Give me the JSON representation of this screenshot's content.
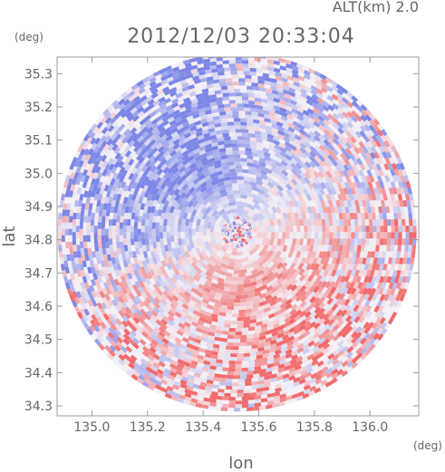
{
  "chart_data": {
    "type": "heatmap",
    "title": "2012/12/03 20:33:04",
    "altitude_label": "ALT(km)  2.0",
    "xlabel": "lon",
    "ylabel": "lat",
    "x_unit": "(deg)",
    "y_unit": "(deg)",
    "xlim": [
      134.875,
      136.175
    ],
    "ylim": [
      34.27,
      35.35
    ],
    "x_ticks": [
      "135.0",
      "135.2",
      "135.4",
      "135.6",
      "135.8",
      "136.0"
    ],
    "y_ticks": [
      "34.3",
      "34.4",
      "34.5",
      "34.6",
      "34.7",
      "34.8",
      "34.9",
      "35.0",
      "35.1",
      "35.2",
      "35.3"
    ],
    "center": [
      135.522,
      34.823
    ],
    "colors": {
      "positive": "#f26a6a",
      "negative": "#7b86e6",
      "neutral": "#f3f0f6",
      "frame": "#9b9b9b"
    },
    "grid": false,
    "legend": "none"
  }
}
